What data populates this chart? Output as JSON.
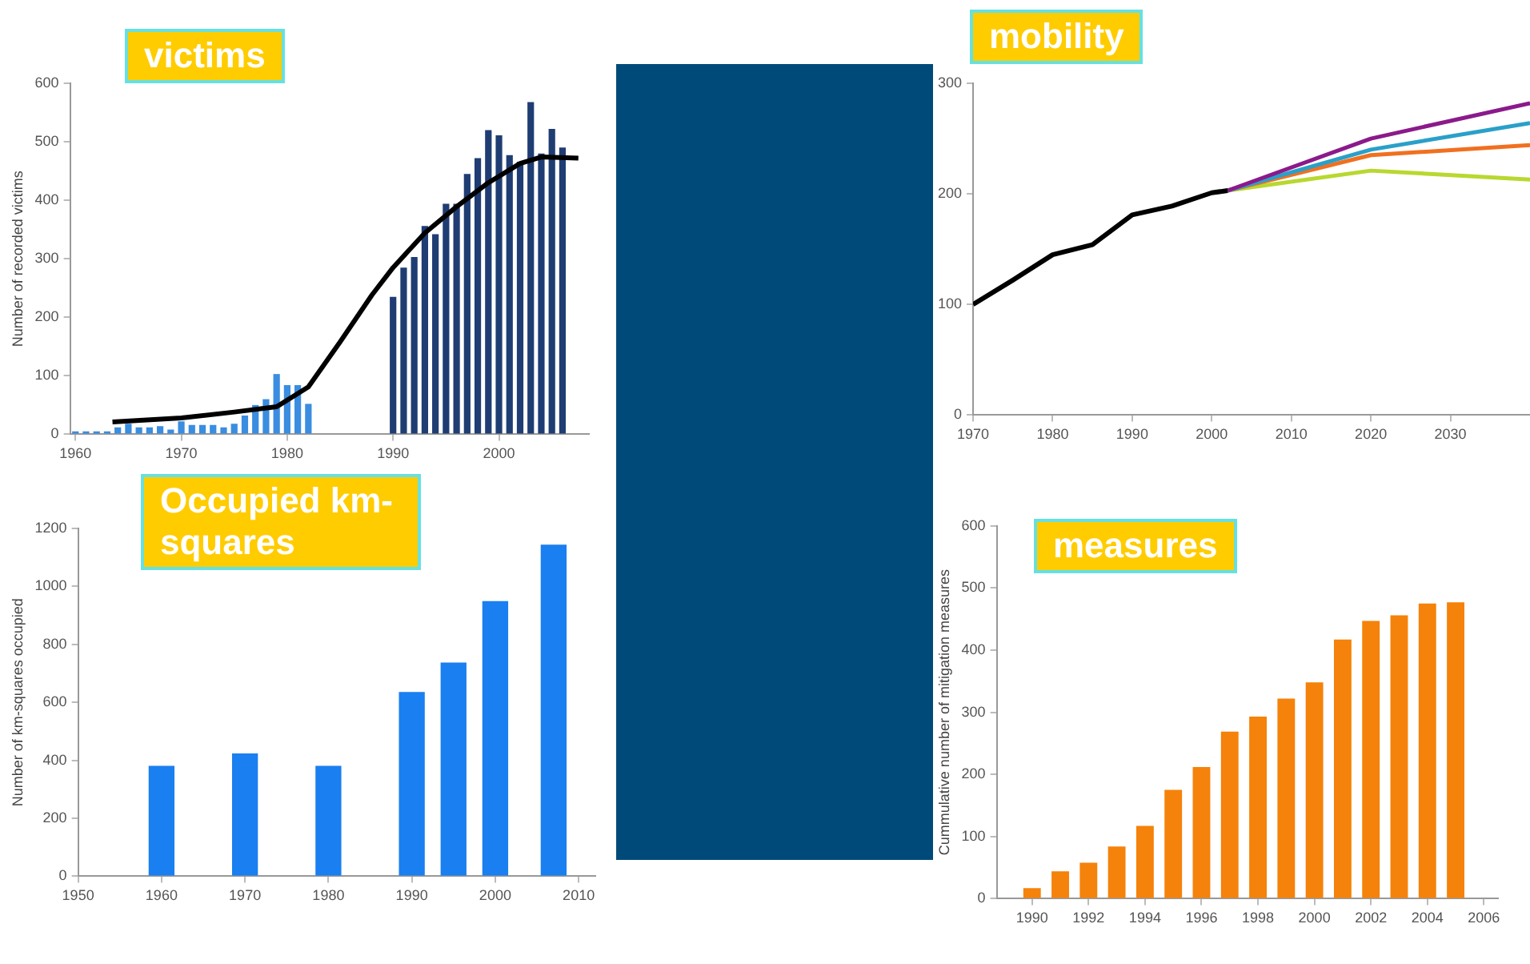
{
  "chart_data": [
    {
      "type": "bar",
      "title": "victims",
      "ylabel": "Number of recorded victims",
      "xlim": [
        1959.5,
        2008.5
      ],
      "xticks": [
        1960,
        1970,
        1980,
        1990,
        2000
      ],
      "ylim": [
        0,
        600
      ],
      "yticks": [
        0,
        100,
        200,
        300,
        400,
        500,
        600
      ],
      "series": [
        {
          "x": [
            1960,
            1961,
            1962,
            1963,
            1964,
            1965,
            1966,
            1967,
            1968,
            1969,
            1970,
            1971,
            1972,
            1973,
            1974,
            1975,
            1976,
            1977,
            1978,
            1979,
            1980,
            1981,
            1982,
            1990,
            1991,
            1992,
            1993,
            1994,
            1995,
            1996,
            1997,
            1998,
            1999,
            2000,
            2001,
            2002,
            2003,
            2004,
            2005,
            2006
          ],
          "values": [
            5,
            5,
            5,
            5,
            12,
            18,
            12,
            12,
            14,
            8,
            22,
            16,
            16,
            16,
            12,
            18,
            32,
            50,
            60,
            103,
            84,
            84,
            52,
            235,
            285,
            303,
            356,
            342,
            394,
            394,
            445,
            472,
            520,
            511,
            477,
            466,
            568,
            480,
            522,
            490
          ],
          "colors": [
            "#3a8de0",
            "#3a8de0",
            "#3a8de0",
            "#3a8de0",
            "#3a8de0",
            "#3a8de0",
            "#3a8de0",
            "#3a8de0",
            "#3a8de0",
            "#3a8de0",
            "#3a8de0",
            "#3a8de0",
            "#3a8de0",
            "#3a8de0",
            "#3a8de0",
            "#3a8de0",
            "#3a8de0",
            "#3a8de0",
            "#3a8de0",
            "#3a8de0",
            "#3a8de0",
            "#3a8de0",
            "#3a8de0",
            "#1f3d73",
            "#1f3d73",
            "#1f3d73",
            "#1f3d73",
            "#1f3d73",
            "#1f3d73",
            "#1f3d73",
            "#1f3d73",
            "#1f3d73",
            "#1f3d73",
            "#1f3d73",
            "#1f3d73",
            "#1f3d73",
            "#1f3d73",
            "#1f3d73",
            "#1f3d73",
            "#1f3d73"
          ]
        },
        {
          "type": "line",
          "color": "#000000",
          "x": [
            1963.5,
            1970,
            1975,
            1979,
            1982,
            1985,
            1988,
            1990,
            1993,
            1996,
            1999,
            2002,
            2004,
            2007.5
          ],
          "values": [
            21,
            28,
            38,
            47,
            81,
            158,
            238,
            285,
            344,
            389,
            430,
            463,
            474,
            472
          ]
        }
      ]
    },
    {
      "type": "line",
      "title": "mobility",
      "xlim": [
        1970,
        2040
      ],
      "xticks": [
        1970,
        1980,
        1990,
        2000,
        2010,
        2020,
        2030
      ],
      "ylim": [
        0,
        300
      ],
      "yticks": [
        0,
        100,
        200,
        300
      ],
      "series": [
        {
          "color": "#000000",
          "x": [
            1970,
            1975,
            1980,
            1985,
            1990,
            1995,
            2000,
            2002
          ],
          "values": [
            100,
            122,
            145,
            154,
            181,
            189,
            201,
            203
          ]
        },
        {
          "color": "#8b1a8b",
          "x": [
            2002,
            2020,
            2040
          ],
          "values": [
            203,
            250,
            282
          ]
        },
        {
          "color": "#2aa0c8",
          "x": [
            2002,
            2020,
            2040
          ],
          "values": [
            203,
            240,
            264
          ]
        },
        {
          "color": "#f07020",
          "x": [
            2002,
            2020,
            2040
          ],
          "values": [
            203,
            235,
            244
          ]
        },
        {
          "color": "#b8d830",
          "x": [
            2002,
            2020,
            2040
          ],
          "values": [
            203,
            221,
            213
          ]
        }
      ]
    },
    {
      "type": "bar",
      "title": "Occupied km-squares",
      "ylabel": "Number of km-squares occupied",
      "xlim": [
        1950,
        2012
      ],
      "xticks": [
        1950,
        1960,
        1970,
        1980,
        1990,
        2000,
        2010
      ],
      "ylim": [
        0,
        1200
      ],
      "yticks": [
        0,
        200,
        400,
        600,
        800,
        1000,
        1200
      ],
      "x": [
        1960,
        1970,
        1980,
        1990,
        1995,
        2000,
        2007
      ],
      "values": [
        381,
        424,
        381,
        636,
        737,
        949,
        1144
      ],
      "color": "#1a7ff0"
    },
    {
      "type": "bar",
      "title": "measures",
      "ylabel": "Cummulative number of mitigation measures",
      "xlim": [
        1988.75,
        2006.5
      ],
      "xticks": [
        1990,
        1992,
        1994,
        1996,
        1998,
        2000,
        2002,
        2004,
        2006
      ],
      "ylim": [
        0,
        600
      ],
      "yticks": [
        0,
        100,
        200,
        300,
        400,
        500,
        600
      ],
      "x": [
        1990,
        1991,
        1992,
        1993,
        1994,
        1995,
        1996,
        1997,
        1998,
        1999,
        2000,
        2001,
        2002,
        2003,
        2004,
        2005
      ],
      "values": [
        17,
        44,
        58,
        84,
        117,
        175,
        212,
        269,
        293,
        322,
        348,
        417,
        447,
        456,
        475,
        477
      ],
      "color": "#f5820a"
    }
  ]
}
